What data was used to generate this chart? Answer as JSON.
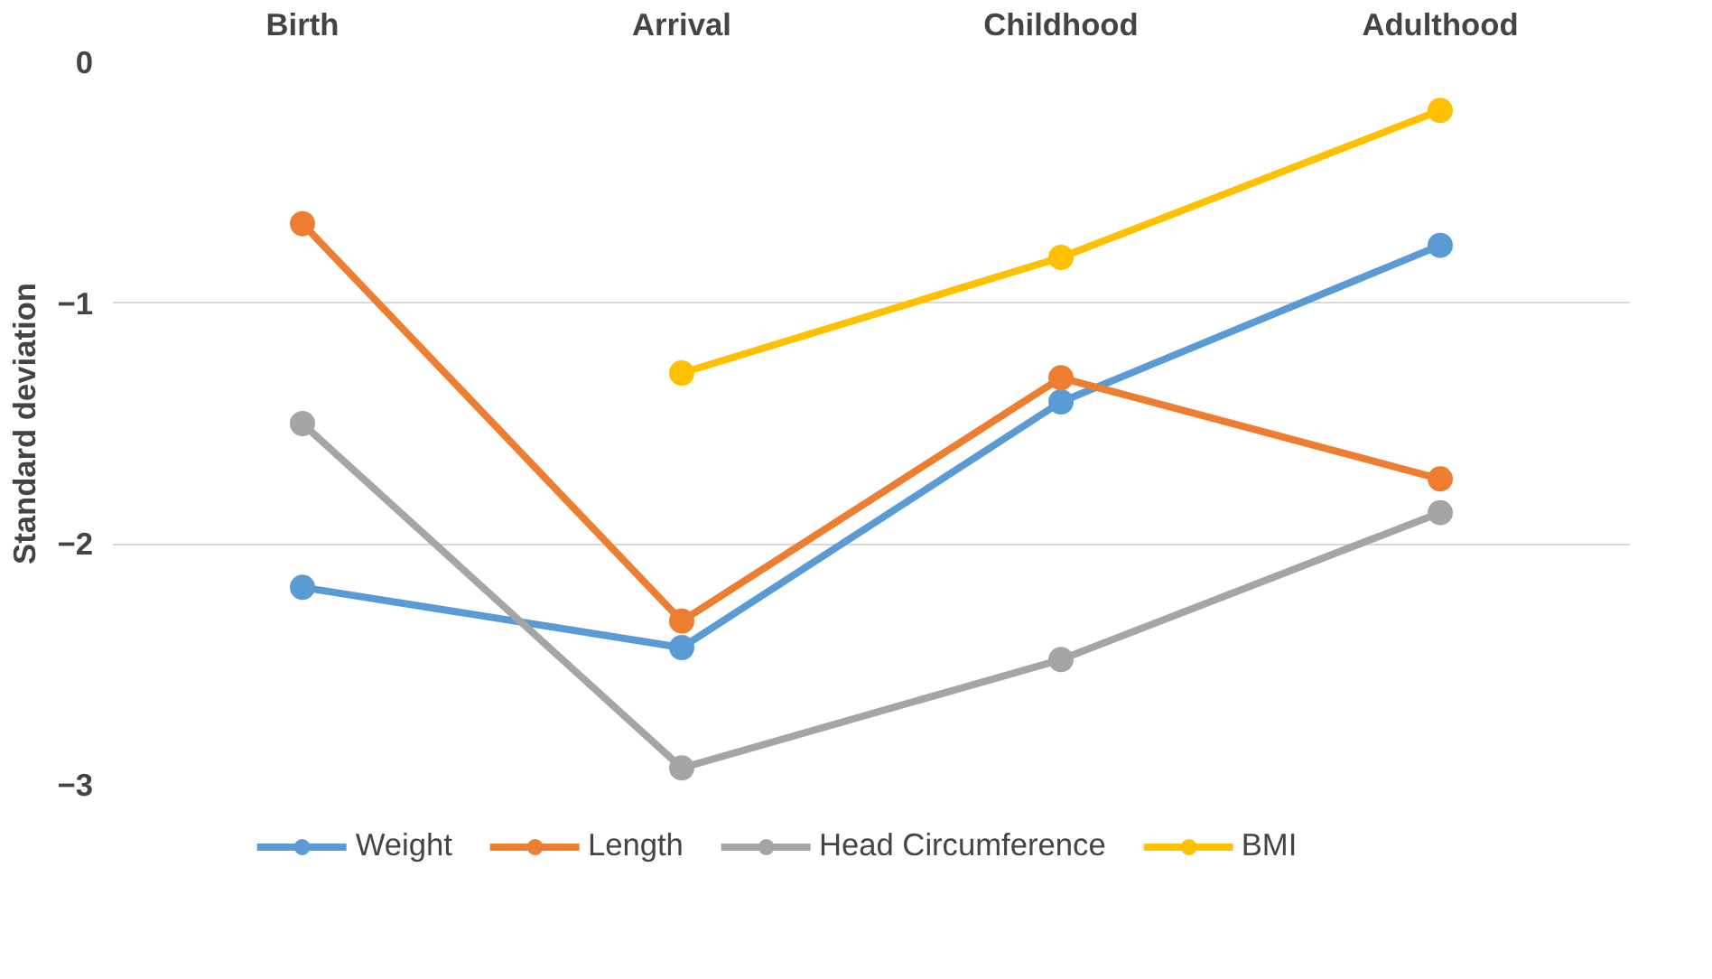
{
  "chart_data": {
    "type": "line",
    "ylabel": "Standard deviation",
    "categories": [
      "Birth",
      "Arrival",
      "Childhood",
      "Adulthood"
    ],
    "series": [
      {
        "name": "Weight",
        "color": "#5b9bd5",
        "values": [
          -2.18,
          -2.43,
          -1.41,
          -0.76
        ]
      },
      {
        "name": "Length",
        "color": "#ed7d31",
        "values": [
          -0.67,
          -2.32,
          -1.31,
          -1.73
        ]
      },
      {
        "name": "Head Circumference",
        "color": "#a5a5a5",
        "values": [
          -1.5,
          -2.93,
          -2.48,
          -1.87
        ]
      },
      {
        "name": "BMI",
        "color": "#ffc000",
        "values": [
          null,
          -1.29,
          -0.81,
          -0.2
        ]
      }
    ],
    "ylim": [
      -3,
      0
    ],
    "yticks": [
      0,
      -1,
      -2,
      -3
    ],
    "grid": "y",
    "legend": "bottom",
    "marker": "circle",
    "line_style": "solid"
  }
}
